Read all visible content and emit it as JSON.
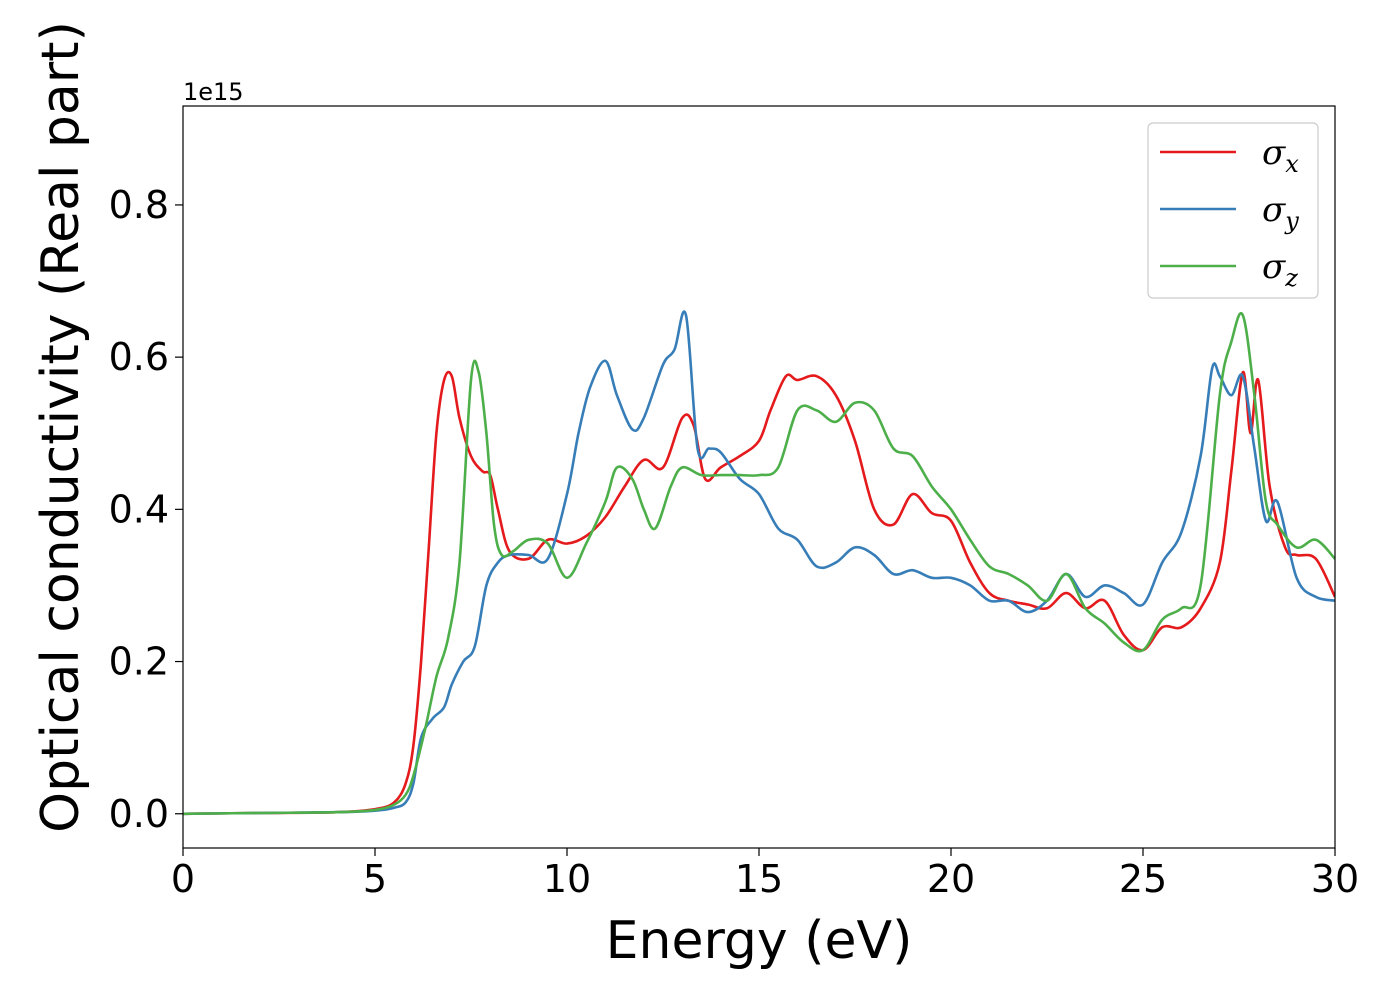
{
  "chart_data": {
    "type": "line",
    "xlabel": "Energy (eV)",
    "ylabel": "Optical conductivity (Real part)",
    "y_offset_text": "1e15",
    "xlim": [
      0,
      30
    ],
    "ylim": [
      -0.045,
      0.93
    ],
    "xticks": [
      0,
      5,
      10,
      15,
      20,
      25,
      30
    ],
    "xtick_labels": [
      "0",
      "5",
      "10",
      "15",
      "20",
      "25",
      "30"
    ],
    "yticks": [
      0.0,
      0.2,
      0.4,
      0.6,
      0.8
    ],
    "ytick_labels": [
      "0.0",
      "0.2",
      "0.4",
      "0.6",
      "0.8"
    ],
    "grid": false,
    "legend_position": "top-right",
    "series": [
      {
        "name": "σx",
        "symbol": "σ",
        "subscript": "x",
        "color": "#e41a1c",
        "x": [
          0,
          2,
          4,
          5,
          5.5,
          5.8,
          6.0,
          6.2,
          6.4,
          6.6,
          6.8,
          7.0,
          7.2,
          7.5,
          7.8,
          8.0,
          8.2,
          8.5,
          9.0,
          9.5,
          10.0,
          10.5,
          11.0,
          11.5,
          12.0,
          12.5,
          13.0,
          13.3,
          13.6,
          14.0,
          14.5,
          15.0,
          15.3,
          15.7,
          16.0,
          16.5,
          17.0,
          17.5,
          18.0,
          18.5,
          19.0,
          19.5,
          20.0,
          20.5,
          21.0,
          21.5,
          22.0,
          22.5,
          23.0,
          23.5,
          24.0,
          24.5,
          25.0,
          25.5,
          26.0,
          26.5,
          27.0,
          27.3,
          27.6,
          27.8,
          28.0,
          28.3,
          28.7,
          29.0,
          29.5,
          30.0
        ],
        "y": [
          0,
          0.001,
          0.002,
          0.006,
          0.015,
          0.04,
          0.09,
          0.2,
          0.35,
          0.5,
          0.57,
          0.575,
          0.52,
          0.47,
          0.45,
          0.445,
          0.4,
          0.345,
          0.335,
          0.36,
          0.355,
          0.365,
          0.39,
          0.43,
          0.465,
          0.455,
          0.52,
          0.51,
          0.44,
          0.455,
          0.47,
          0.49,
          0.53,
          0.575,
          0.57,
          0.575,
          0.55,
          0.49,
          0.4,
          0.38,
          0.42,
          0.395,
          0.385,
          0.33,
          0.29,
          0.28,
          0.275,
          0.27,
          0.29,
          0.27,
          0.28,
          0.235,
          0.215,
          0.245,
          0.245,
          0.27,
          0.33,
          0.45,
          0.58,
          0.5,
          0.57,
          0.43,
          0.35,
          0.34,
          0.335,
          0.285
        ]
      },
      {
        "name": "σy",
        "symbol": "σ",
        "subscript": "y",
        "color": "#377eb8",
        "x": [
          0,
          2,
          4,
          5,
          5.5,
          5.8,
          6.0,
          6.2,
          6.5,
          6.8,
          7.0,
          7.3,
          7.6,
          7.9,
          8.2,
          8.5,
          9.0,
          9.5,
          10.0,
          10.3,
          10.6,
          11.0,
          11.3,
          11.7,
          12.0,
          12.5,
          12.8,
          13.1,
          13.4,
          13.7,
          14.0,
          14.5,
          15.0,
          15.5,
          16.0,
          16.5,
          17.0,
          17.5,
          18.0,
          18.5,
          19.0,
          19.5,
          20.0,
          20.5,
          21.0,
          21.5,
          22.0,
          22.5,
          23.0,
          23.5,
          24.0,
          24.5,
          25.0,
          25.5,
          26.0,
          26.5,
          26.8,
          27.0,
          27.3,
          27.6,
          27.9,
          28.2,
          28.5,
          29.0,
          29.5,
          30.0
        ],
        "y": [
          0,
          0.001,
          0.002,
          0.004,
          0.008,
          0.015,
          0.04,
          0.1,
          0.125,
          0.14,
          0.17,
          0.2,
          0.22,
          0.3,
          0.33,
          0.34,
          0.34,
          0.335,
          0.42,
          0.5,
          0.56,
          0.595,
          0.55,
          0.505,
          0.52,
          0.59,
          0.61,
          0.655,
          0.48,
          0.48,
          0.475,
          0.44,
          0.42,
          0.375,
          0.36,
          0.325,
          0.33,
          0.35,
          0.34,
          0.315,
          0.32,
          0.31,
          0.31,
          0.3,
          0.28,
          0.28,
          0.265,
          0.28,
          0.315,
          0.285,
          0.3,
          0.29,
          0.275,
          0.33,
          0.37,
          0.47,
          0.585,
          0.575,
          0.55,
          0.575,
          0.48,
          0.385,
          0.41,
          0.31,
          0.285,
          0.28
        ]
      },
      {
        "name": "σz",
        "symbol": "σ",
        "subscript": "z",
        "color": "#4daf4a",
        "x": [
          0,
          2,
          4,
          5,
          5.5,
          5.8,
          6.0,
          6.3,
          6.6,
          6.9,
          7.2,
          7.5,
          7.7,
          7.9,
          8.1,
          8.3,
          8.6,
          9.0,
          9.5,
          10.0,
          10.5,
          11.0,
          11.3,
          11.7,
          12.0,
          12.3,
          12.7,
          13.0,
          13.5,
          14.0,
          14.5,
          15.0,
          15.5,
          16.0,
          16.5,
          17.0,
          17.5,
          18.0,
          18.5,
          19.0,
          19.5,
          20.0,
          20.5,
          21.0,
          21.5,
          22.0,
          22.5,
          23.0,
          23.5,
          24.0,
          24.5,
          25.0,
          25.5,
          26.0,
          26.5,
          27.0,
          27.3,
          27.6,
          27.9,
          28.2,
          28.5,
          29.0,
          29.5,
          30.0
        ],
        "y": [
          0,
          0.001,
          0.002,
          0.005,
          0.012,
          0.025,
          0.05,
          0.11,
          0.18,
          0.23,
          0.33,
          0.57,
          0.58,
          0.5,
          0.38,
          0.34,
          0.345,
          0.36,
          0.355,
          0.31,
          0.355,
          0.41,
          0.455,
          0.44,
          0.4,
          0.375,
          0.43,
          0.455,
          0.445,
          0.445,
          0.445,
          0.445,
          0.455,
          0.53,
          0.53,
          0.515,
          0.54,
          0.53,
          0.48,
          0.47,
          0.43,
          0.4,
          0.36,
          0.325,
          0.315,
          0.3,
          0.28,
          0.315,
          0.27,
          0.25,
          0.225,
          0.215,
          0.255,
          0.27,
          0.3,
          0.55,
          0.62,
          0.655,
          0.55,
          0.41,
          0.38,
          0.35,
          0.36,
          0.335
        ]
      }
    ]
  }
}
